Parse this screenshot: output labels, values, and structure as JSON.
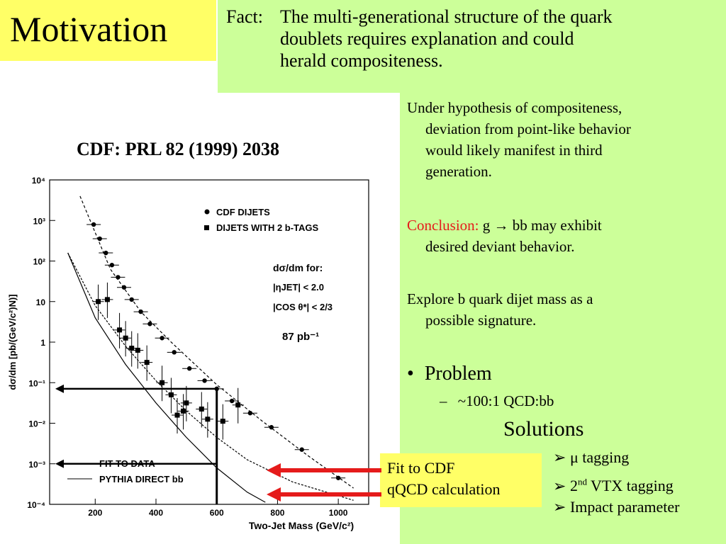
{
  "title": "Motivation",
  "fact": {
    "label": "Fact:",
    "line1": "The multi-generational structure of the quark",
    "line2": "doublets requires explanation and could",
    "line3": "herald compositeness."
  },
  "right": {
    "p1": [
      "Under hypothesis of compositeness,",
      "deviation from point-like behavior",
      "would likely manifest in third",
      "generation."
    ],
    "conclusion_label": "Conclusion:",
    "conclusion_text": " g → bb may exhibit",
    "conclusion_line2": "desired deviant behavior.",
    "p3": [
      "Explore b quark dijet mass as a",
      "possible signature."
    ],
    "problem_bullet": "•",
    "problem": "Problem",
    "problem_sub_dash": "–",
    "problem_sub": "~100:1 QCD:bb",
    "solutions_title": "Solutions",
    "solutions": [
      "μ tagging",
      "2nd VTX tagging",
      "Impact parameter"
    ],
    "solution_marker": "➢"
  },
  "plot_caption": "CDF:  PRL 82 (1999) 2038",
  "callout": {
    "line1": "Fit to CDF",
    "line2": "qQCD calculation"
  },
  "colors": {
    "title_bg": "#ffff66",
    "panel_bg": "#ccff99",
    "arrow": "#e51b1b",
    "conclusion": "#e51b1b"
  },
  "chart_data": {
    "type": "scatter",
    "xlabel": "Two-Jet Mass (GeV/c²)",
    "ylabel": "dσ/dm [pb/(GeV/c²)N)]",
    "xlim": [
      50,
      1100
    ],
    "ylim_log10": [
      -4,
      4
    ],
    "x_ticks": [
      "200",
      "400",
      "600",
      "800",
      "1000"
    ],
    "y_ticks": [
      "10⁴",
      "10³",
      "10²",
      "10",
      "1",
      "10⁻¹",
      "10⁻²",
      "10⁻³",
      "10⁻⁴"
    ],
    "legend_series": [
      "CDF DIJETS",
      "DIJETS WITH 2 b-TAGS"
    ],
    "legend_lines": [
      "FIT TO DATA",
      "PYTHIA DIRECT bb"
    ],
    "annotation_title": "dσ/dm for:",
    "annotation_cuts": [
      "|ηJET| < 2.0",
      "|COS θ*| < 2/3"
    ],
    "annotation_lumi": "87 pb⁻¹",
    "series": [
      {
        "name": "CDF DIJETS",
        "x": [
          195,
          215,
          235,
          255,
          275,
          295,
          320,
          350,
          380,
          420,
          460,
          510,
          560,
          600,
          650,
          710,
          780,
          880,
          1000
        ],
        "log10y": [
          2.9,
          2.55,
          2.2,
          1.9,
          1.6,
          1.35,
          1.05,
          0.75,
          0.45,
          0.1,
          -0.25,
          -0.65,
          -0.95,
          -1.15,
          -1.45,
          -1.75,
          -2.1,
          -2.65,
          -3.35
        ]
      },
      {
        "name": "DIJETS WITH 2 b-TAGS",
        "x": [
          210,
          240,
          280,
          300,
          320,
          340,
          370,
          420,
          450,
          470,
          490,
          500,
          550,
          570,
          620,
          670
        ],
        "log10y": [
          1.0,
          1.05,
          0.3,
          0.1,
          -0.15,
          -0.2,
          -0.5,
          -1.0,
          -1.3,
          -1.8,
          -1.7,
          -1.5,
          -1.65,
          -1.9,
          -1.95,
          -1.55
        ]
      }
    ],
    "fit_to_data": {
      "x": [
        110,
        200,
        300,
        400,
        500,
        600,
        700,
        850,
        1050
      ],
      "log10y": [
        2.2,
        0.9,
        -0.1,
        -0.95,
        -1.7,
        -2.35,
        -2.9,
        -3.45,
        -3.9
      ]
    },
    "pythia_direct": {
      "x": [
        110,
        200,
        300,
        400,
        500,
        600,
        700,
        760
      ],
      "log10y": [
        2.2,
        0.6,
        -0.55,
        -1.5,
        -2.35,
        -3.1,
        -3.7,
        -3.95
      ]
    },
    "cdf_fit": {
      "x": [
        150,
        250,
        350,
        450,
        600,
        750,
        900,
        1050
      ],
      "log10y": [
        3.6,
        1.8,
        0.75,
        0.0,
        -1.05,
        -1.95,
        -2.8,
        -3.6
      ]
    }
  }
}
